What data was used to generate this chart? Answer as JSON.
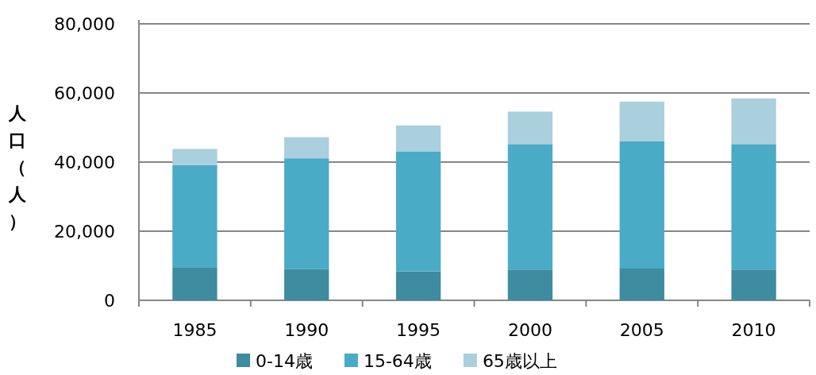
{
  "chart_data": {
    "type": "bar",
    "stacked": true,
    "ylabel": "人口（人）",
    "categories": [
      "1985",
      "1990",
      "1995",
      "2000",
      "2005",
      "2010"
    ],
    "series": [
      {
        "name": "0-14歳",
        "color": "#3d8ca0",
        "values": [
          9600,
          9100,
          8400,
          8900,
          9200,
          8900
        ]
      },
      {
        "name": "15-64歳",
        "color": "#4aabc6",
        "values": [
          29500,
          32000,
          34700,
          36300,
          36800,
          36300
        ]
      },
      {
        "name": "65歳以上",
        "color": "#aacfdd",
        "values": [
          4700,
          6100,
          7500,
          9400,
          11500,
          13200
        ]
      }
    ],
    "ylim": [
      0,
      80000
    ],
    "yticks": [
      {
        "value": 0,
        "label": "0"
      },
      {
        "value": 20000,
        "label": "20,000"
      },
      {
        "value": 40000,
        "label": "40,000"
      },
      {
        "value": 60000,
        "label": "60,000"
      },
      {
        "value": 80000,
        "label": "80,000"
      }
    ],
    "grid": "y",
    "legend": "bottom"
  }
}
